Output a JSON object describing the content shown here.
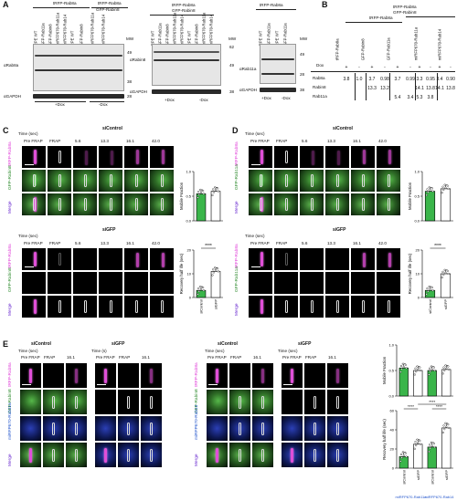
{
  "panels": [
    "A",
    "B",
    "C",
    "D",
    "E"
  ],
  "panelA": {
    "blot1": {
      "top_groups": [
        "tRFP-Rab8a",
        "tRFP-Rab8a",
        "GFP-Rabin8"
      ],
      "lanes": [
        "RPE WT",
        "GFP-Rab11a",
        "GFP-Rabin8",
        "miRFP670-Rab11a",
        "miRFP670-Rab14",
        "RPE WT",
        "GFP-Rabin8",
        "miRFP670-Rab11a",
        "miRFP670-Rab14"
      ],
      "mw_label": "MW",
      "mw_marks": [
        "49",
        "38",
        "28"
      ],
      "antibodies": [
        "αRab8a",
        "αGAPDH"
      ],
      "dox": [
        "+Dox",
        "-Dox"
      ]
    },
    "blot2": {
      "top_groups": [
        "tRFP-Rab8a",
        "GFP-Rabin8"
      ],
      "lanes": [
        "RPE WT",
        "GFP-Rab11a",
        "GFP-Rabin8",
        "miRFP670-Rab11a",
        "miRFP670-Rab14",
        "RPE WT",
        "GFP-Rabin8",
        "miRFP670-Rab11a",
        "miRFP670-Rab14"
      ],
      "mw_label": "MW",
      "mw_marks": [
        "62",
        "49",
        "38"
      ],
      "antibodies": [
        "αRabin8",
        "αGAPDH"
      ],
      "dox": [
        "+Dox",
        "-Dox"
      ]
    },
    "blot3": {
      "top_groups": [
        "tRFP-Rab8a"
      ],
      "lanes": [
        "RPE WT",
        "GFP-Rab11a",
        "RPE WT",
        "GFP-Rab11a"
      ],
      "mw_label": "MW",
      "mw_marks": [
        "49",
        "28",
        "38"
      ],
      "antibodies": [
        "αRab11a",
        "αGAPDH"
      ],
      "dox": [
        "+Dox",
        "-Dox"
      ]
    }
  },
  "panelB": {
    "headers": [
      "tRFP-Rab8a",
      "GFP-Rab11a",
      "GFP-Rabin8",
      "miRFP670-Rab11a",
      "miRFP670-Rab14",
      "tRFP-Rab8a",
      "GFP-Rabin8"
    ],
    "col_labels": [
      "tRFP-Rab8a",
      "GFP-Rab11a",
      "GFP-Rabin8",
      "miRFP670-Rab11a",
      "miRFP670-Rab14"
    ],
    "dox_label": "Dox",
    "dox_signs": [
      "+",
      "-",
      "+",
      "-",
      "+",
      "-",
      "+",
      "-",
      "+",
      "-",
      "+",
      "-"
    ],
    "rows": [
      {
        "name": "Rab8a",
        "values": [
          "3.8",
          "1.0",
          "3.7",
          "0.98",
          "3.7",
          "0.99",
          "3.3",
          "0.95",
          "3.4",
          "0.90"
        ]
      },
      {
        "name": "Rabin8",
        "values": [
          "",
          "",
          "13.3",
          "13.2",
          "",
          "",
          "14.1",
          "13.8",
          "14.1",
          "13.8"
        ]
      },
      {
        "name": "Rab11a",
        "values": [
          "",
          "",
          "",
          "",
          "5.4",
          "3.4",
          "5.3",
          "3.8",
          "",
          ""
        ]
      }
    ]
  },
  "panelC": {
    "time_label": "Time (sec)",
    "times": [
      "Pre FRAP",
      "FRAP",
      "5.6",
      "13.3",
      "16.1",
      "42.0"
    ],
    "condition_top": "siControl",
    "condition_bottom": "siGFP",
    "rows": [
      "tRFP-Rab8a",
      "GFP-Rabin8",
      "Merge"
    ],
    "chart_top_ylabel": "Mobile Fraction",
    "chart_bottom_ylabel": "Recovery half life (sec)",
    "sig": "****",
    "x_cats": [
      "siControl",
      "siGFP"
    ]
  },
  "panelD": {
    "time_label": "Time (sec)",
    "times": [
      "Pre FRAP",
      "FRAP",
      "5.6",
      "13.3",
      "16.1",
      "42.0"
    ],
    "condition_top": "siControl",
    "condition_bottom": "siGFP",
    "rows": [
      "tRFP-Rab8a",
      "GFP-Rab11a",
      "Merge"
    ],
    "chart_top_ylabel": "Mobile Fraction",
    "chart_bottom_ylabel": "Recovery half life (sec)",
    "sig": "****",
    "x_cats": [
      "siControl",
      "siGFP"
    ]
  },
  "panelE": {
    "left": {
      "conds": [
        "siControl",
        "siGFP"
      ],
      "time_label_1": "Time (sec)",
      "time_label_2": "Time (s)",
      "times": [
        "Pre FRAP",
        "FRAP",
        "16.1"
      ],
      "rows": [
        "tRFP-Rab8a",
        "GFP-Rabin8",
        "miRFP670-Rab11a",
        "Merge"
      ]
    },
    "right": {
      "conds": [
        "siControl",
        "siGFP"
      ],
      "time_label_1": "Time (sec)",
      "time_label_2": "Time (sec)",
      "times": [
        "Pre FRAP",
        "FRAP",
        "16.1"
      ],
      "rows": [
        "tRFP-Rab8a",
        "GFP-Rabin8",
        "miRFP670-Rab14",
        "Merge"
      ]
    },
    "chart_top_ylabel": "Mobile Fraction",
    "chart_bottom_ylabel": "Recovery half life (sec)",
    "x_cats": [
      "siControl",
      "siGFP",
      "siControl",
      "siGFP"
    ],
    "groups": [
      "miRFP670-Rab11a",
      "miRFP670-Rab14"
    ],
    "sig": [
      "****",
      "****",
      "****"
    ]
  },
  "chart_data": [
    {
      "type": "bar",
      "panel": "C-top",
      "title": "",
      "xlabel": "",
      "ylabel": "Mobile Fraction",
      "categories": [
        "siControl",
        "siGFP"
      ],
      "values": [
        0.55,
        0.6
      ],
      "ylim": [
        0,
        1.0
      ],
      "ticks": [
        "0.0",
        "0.5",
        "1.0"
      ],
      "colors": [
        "#3ab54a",
        "#ffffff"
      ]
    },
    {
      "type": "bar",
      "panel": "C-bottom",
      "title": "",
      "xlabel": "",
      "ylabel": "Recovery half life (sec)",
      "categories": [
        "siControl",
        "siGFP"
      ],
      "values": [
        3,
        11
      ],
      "ylim": [
        0,
        20
      ],
      "ticks": [
        "0",
        "10",
        "20"
      ],
      "colors": [
        "#3ab54a",
        "#ffffff"
      ]
    },
    {
      "type": "bar",
      "panel": "D-top",
      "title": "",
      "xlabel": "",
      "ylabel": "Mobile Fraction",
      "categories": [
        "siControl",
        "siGFP"
      ],
      "values": [
        0.6,
        0.65
      ],
      "ylim": [
        0,
        1.0
      ],
      "ticks": [
        "0.0",
        "0.5",
        "1.0"
      ],
      "colors": [
        "#3ab54a",
        "#ffffff"
      ]
    },
    {
      "type": "bar",
      "panel": "D-bottom",
      "title": "",
      "xlabel": "",
      "ylabel": "Recovery half life (sec)",
      "categories": [
        "siControl",
        "siGFP"
      ],
      "values": [
        3,
        10
      ],
      "ylim": [
        0,
        20
      ],
      "ticks": [
        "0",
        "10",
        "20"
      ],
      "colors": [
        "#3ab54a",
        "#ffffff"
      ]
    },
    {
      "type": "bar",
      "panel": "E-top",
      "title": "",
      "xlabel": "",
      "ylabel": "Mobile Fraction",
      "categories": [
        "siControl",
        "siGFP",
        "siControl",
        "siGFP"
      ],
      "values": [
        0.55,
        0.5,
        0.5,
        0.52
      ],
      "ylim": [
        0,
        1.0
      ],
      "ticks": [
        "0.0",
        "0.5",
        "1.0"
      ],
      "colors": [
        "#3ab54a",
        "#ffffff",
        "#3ab54a",
        "#ffffff"
      ]
    },
    {
      "type": "bar",
      "panel": "E-bottom",
      "title": "",
      "xlabel": "",
      "ylabel": "Recovery half life (sec)",
      "categories": [
        "siControl",
        "siGFP",
        "siControl",
        "siGFP"
      ],
      "values": [
        12,
        25,
        22,
        42
      ],
      "ylim": [
        0,
        60
      ],
      "ticks": [
        "0",
        "20",
        "40",
        "60"
      ],
      "colors": [
        "#3ab54a",
        "#ffffff",
        "#3ab54a",
        "#ffffff"
      ]
    }
  ]
}
